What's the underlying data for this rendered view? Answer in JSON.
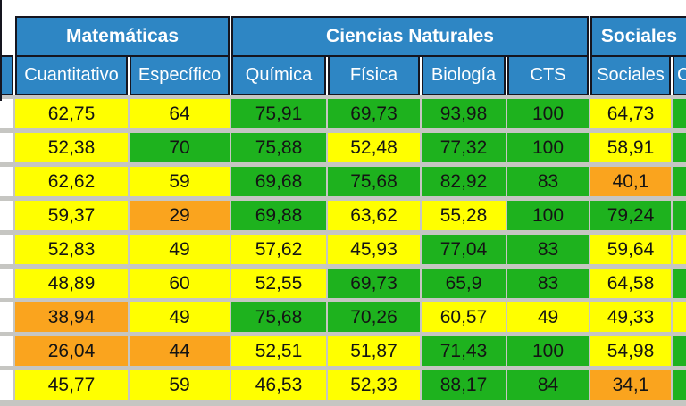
{
  "palette": {
    "header_blue": "#2e86c4",
    "border_black": "#15151f",
    "grid_gray": "#c6c6c2",
    "yellow": "#ffff00",
    "green": "#1eb21e",
    "orange": "#faa41e"
  },
  "table": {
    "groups": [
      {
        "label": "Matemáticas"
      },
      {
        "label": "Ciencias Naturales"
      },
      {
        "label": "Sociales"
      }
    ],
    "columns": [
      "Cuantitativo",
      "Específico",
      "Química",
      "Física",
      "Biología",
      "CTS",
      "Sociales",
      "C"
    ],
    "rows": [
      {
        "v": [
          "62,75",
          "64",
          "75,91",
          "69,73",
          "93,98",
          "100",
          "64,73",
          ""
        ],
        "c": [
          "c-yellow",
          "c-yellow",
          "c-green",
          "c-green",
          "c-green",
          "c-green",
          "c-yellow",
          "c-green"
        ]
      },
      {
        "v": [
          "52,38",
          "70",
          "75,88",
          "52,48",
          "77,32",
          "100",
          "58,91",
          ""
        ],
        "c": [
          "c-yellow",
          "c-green",
          "c-green",
          "c-yellow",
          "c-green",
          "c-green",
          "c-yellow",
          "c-green"
        ]
      },
      {
        "v": [
          "62,62",
          "59",
          "69,68",
          "75,68",
          "82,92",
          "83",
          "40,1",
          ""
        ],
        "c": [
          "c-yellow",
          "c-yellow",
          "c-green",
          "c-green",
          "c-green",
          "c-green",
          "c-orange",
          "c-green"
        ]
      },
      {
        "v": [
          "59,37",
          "29",
          "69,88",
          "63,62",
          "55,28",
          "100",
          "79,24",
          ""
        ],
        "c": [
          "c-yellow",
          "c-orange",
          "c-green",
          "c-yellow",
          "c-yellow",
          "c-green",
          "c-green",
          "c-green"
        ]
      },
      {
        "v": [
          "52,83",
          "49",
          "57,62",
          "45,93",
          "77,04",
          "83",
          "59,64",
          ""
        ],
        "c": [
          "c-yellow",
          "c-yellow",
          "c-yellow",
          "c-yellow",
          "c-green",
          "c-green",
          "c-yellow",
          "c-yellow"
        ]
      },
      {
        "v": [
          "48,89",
          "60",
          "52,55",
          "69,73",
          "65,9",
          "83",
          "64,58",
          ""
        ],
        "c": [
          "c-yellow",
          "c-yellow",
          "c-yellow",
          "c-green",
          "c-green",
          "c-green",
          "c-yellow",
          "c-green"
        ]
      },
      {
        "v": [
          "38,94",
          "49",
          "75,68",
          "70,26",
          "60,57",
          "49",
          "49,33",
          ""
        ],
        "c": [
          "c-orange",
          "c-yellow",
          "c-green",
          "c-green",
          "c-yellow",
          "c-yellow",
          "c-yellow",
          "c-yellow"
        ]
      },
      {
        "v": [
          "26,04",
          "44",
          "52,51",
          "51,87",
          "71,43",
          "100",
          "54,98",
          ""
        ],
        "c": [
          "c-orange",
          "c-orange",
          "c-yellow",
          "c-yellow",
          "c-green",
          "c-green",
          "c-yellow",
          "c-green"
        ]
      },
      {
        "v": [
          "45,77",
          "59",
          "46,53",
          "52,33",
          "88,17",
          "84",
          "34,1",
          ""
        ],
        "c": [
          "c-yellow",
          "c-yellow",
          "c-yellow",
          "c-yellow",
          "c-green",
          "c-green",
          "c-orange",
          "c-green"
        ]
      }
    ]
  }
}
